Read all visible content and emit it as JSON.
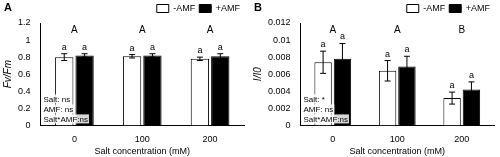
{
  "chart_data": [
    {
      "type": "bar",
      "title": "A",
      "x_label": "Salt concentration (mM)",
      "y_label": "Fv/Fm",
      "categories": [
        "0",
        "100",
        "200"
      ],
      "series": [
        {
          "name": "-AMF",
          "color": "#ffffff",
          "values": [
            0.8,
            0.81,
            0.78
          ],
          "errors": [
            0.04,
            0.02,
            0.02
          ],
          "letters": [
            "a",
            "a",
            "a"
          ]
        },
        {
          "name": "+AMF",
          "color": "#000000",
          "values": [
            0.82,
            0.82,
            0.81
          ],
          "errors": [
            0.02,
            0.02,
            0.03
          ],
          "letters": [
            "a",
            "a",
            "a"
          ]
        }
      ],
      "group_letters": [
        "A",
        "A",
        "A"
      ],
      "annotations": [
        "Salt: ns",
        "AMF: ns",
        "Salt*AMF:ns"
      ],
      "ylim": [
        0,
        1.2
      ],
      "yticks": [
        0,
        0.2,
        0.4,
        0.6,
        0.8,
        1,
        1.2
      ],
      "grid": false,
      "legend": "top right"
    },
    {
      "type": "bar",
      "title": "B",
      "x_label": "Salt concentration (mM)",
      "y_label": "I/I0",
      "categories": [
        "0",
        "100",
        "200"
      ],
      "series": [
        {
          "name": "-AMF",
          "color": "#ffffff",
          "values": [
            0.0074,
            0.0064,
            0.0032
          ],
          "errors": [
            0.0013,
            0.0012,
            0.0007
          ],
          "letters": [
            "a",
            "a",
            "a"
          ]
        },
        {
          "name": "+AMF",
          "color": "#000000",
          "values": [
            0.0078,
            0.0069,
            0.0042
          ],
          "errors": [
            0.0018,
            0.0012,
            0.0009
          ],
          "letters": [
            "a",
            "a",
            "a"
          ]
        }
      ],
      "group_letters": [
        "A",
        "A",
        "B"
      ],
      "annotations": [
        "Salt: *",
        "AMF: ns",
        "Salt*AMF:ns"
      ],
      "ylim": [
        0,
        0.012
      ],
      "yticks": [
        0,
        0.002,
        0.004,
        0.006,
        0.008,
        0.01,
        0.012
      ],
      "grid": false,
      "legend": "top right"
    }
  ]
}
